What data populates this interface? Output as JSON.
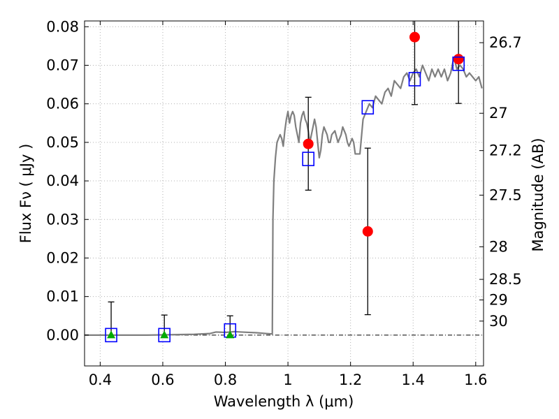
{
  "chart_data": {
    "type": "scatter",
    "title": "",
    "xlabel": "Wavelength  λ (μm)",
    "ylabel": "Flux  Fν  ( μJy )",
    "y2label": "Magnitude (AB)",
    "xlim": [
      0.35,
      1.625
    ],
    "ylim": [
      -0.008,
      0.0815
    ],
    "x_ticks": [
      0.4,
      0.6,
      0.8,
      1.0,
      1.2,
      1.4,
      1.6
    ],
    "x_tick_labels": [
      "0.4",
      "0.6",
      "0.8",
      "1",
      "1.2",
      "1.4",
      "1.6"
    ],
    "y_ticks": [
      0.0,
      0.01,
      0.02,
      0.03,
      0.04,
      0.05,
      0.06,
      0.07,
      0.08
    ],
    "y_tick_labels": [
      "0.00",
      "0.01",
      "0.02",
      "0.03",
      "0.04",
      "0.05",
      "0.06",
      "0.07",
      "0.08"
    ],
    "magnitude_ticks": [
      {
        "label": "26.7",
        "mag": 26.7
      },
      {
        "label": "27",
        "mag": 27.0
      },
      {
        "label": "27.2",
        "mag": 27.2
      },
      {
        "label": "27.5",
        "mag": 27.5
      },
      {
        "label": "28",
        "mag": 28.0
      },
      {
        "label": "28.5",
        "mag": 28.5
      },
      {
        "label": "29",
        "mag": 29.0
      },
      {
        "label": "30",
        "mag": 30.0
      }
    ],
    "grid": true,
    "zero_line": true,
    "colors": {
      "model": "#7f7f7f",
      "observed": "#ff0000",
      "synthetic": "#0000ff",
      "upper_limit": "#00aa00",
      "errorbar": "#000000",
      "grid": "#b0b0b0"
    },
    "series": [
      {
        "kind": "line",
        "x": [
          0.35,
          0.55,
          0.7,
          0.75,
          0.77,
          0.8,
          0.83,
          0.85,
          0.9,
          0.93,
          0.95,
          0.952,
          0.955,
          0.96,
          0.965,
          0.97,
          0.975,
          0.98,
          0.985,
          0.99,
          0.995,
          1.0,
          1.005,
          1.01,
          1.015,
          1.02,
          1.025,
          1.03,
          1.035,
          1.04,
          1.045,
          1.05,
          1.055,
          1.06,
          1.065,
          1.07,
          1.075,
          1.08,
          1.085,
          1.09,
          1.095,
          1.1,
          1.105,
          1.11,
          1.115,
          1.12,
          1.125,
          1.13,
          1.135,
          1.14,
          1.15,
          1.16,
          1.17,
          1.175,
          1.18,
          1.185,
          1.19,
          1.195,
          1.2,
          1.205,
          1.21,
          1.215,
          1.22,
          1.23,
          1.24,
          1.25,
          1.26,
          1.27,
          1.28,
          1.29,
          1.3,
          1.31,
          1.32,
          1.33,
          1.34,
          1.35,
          1.36,
          1.37,
          1.38,
          1.39,
          1.4,
          1.41,
          1.42,
          1.43,
          1.44,
          1.45,
          1.46,
          1.47,
          1.48,
          1.49,
          1.5,
          1.51,
          1.52,
          1.53,
          1.54,
          1.55,
          1.56,
          1.57,
          1.58,
          1.59,
          1.6,
          1.61,
          1.62
        ],
        "y": [
          0.0,
          0.0,
          0.0002,
          0.0004,
          0.0008,
          0.0007,
          0.0009,
          0.0008,
          0.0006,
          0.0004,
          0.0003,
          0.03,
          0.04,
          0.046,
          0.05,
          0.051,
          0.052,
          0.051,
          0.049,
          0.053,
          0.056,
          0.058,
          0.055,
          0.057,
          0.058,
          0.057,
          0.054,
          0.052,
          0.05,
          0.055,
          0.057,
          0.058,
          0.056,
          0.055,
          0.053,
          0.05,
          0.052,
          0.054,
          0.056,
          0.054,
          0.05,
          0.046,
          0.048,
          0.052,
          0.054,
          0.053,
          0.052,
          0.05,
          0.05,
          0.052,
          0.053,
          0.05,
          0.052,
          0.054,
          0.053,
          0.052,
          0.05,
          0.049,
          0.05,
          0.051,
          0.05,
          0.047,
          0.047,
          0.047,
          0.056,
          0.058,
          0.06,
          0.059,
          0.062,
          0.061,
          0.06,
          0.063,
          0.064,
          0.062,
          0.066,
          0.065,
          0.064,
          0.067,
          0.068,
          0.066,
          0.068,
          0.069,
          0.067,
          0.07,
          0.068,
          0.066,
          0.069,
          0.067,
          0.069,
          0.067,
          0.069,
          0.066,
          0.068,
          0.072,
          0.069,
          0.07,
          0.069,
          0.067,
          0.068,
          0.067,
          0.066,
          0.067,
          0.064
        ]
      },
      {
        "kind": "markers",
        "marker": "circle",
        "x": [
          1.065,
          1.255,
          1.405,
          1.545
        ],
        "y": [
          0.0496,
          0.0269,
          0.0773,
          0.0716
        ],
        "yerr_low": [
          0.0376,
          0.0053,
          0.0598,
          0.0601
        ],
        "yerr_high": [
          0.0617,
          0.0485,
          0.0815,
          0.0815
        ]
      },
      {
        "kind": "markers",
        "marker": "square",
        "x": [
          0.435,
          0.605,
          0.815,
          1.065,
          1.255,
          1.405,
          1.545
        ],
        "y": [
          0.0,
          0.0,
          0.0012,
          0.0457,
          0.0591,
          0.0664,
          0.0704
        ]
      },
      {
        "kind": "markers",
        "marker": "triangle",
        "x": [
          0.435,
          0.605,
          0.815
        ],
        "y": [
          0.0,
          0.0,
          0.0
        ],
        "yerr_low": [
          0.0,
          0.0,
          0.0
        ],
        "yerr_high": [
          0.0086,
          0.0052,
          0.005
        ]
      }
    ]
  }
}
